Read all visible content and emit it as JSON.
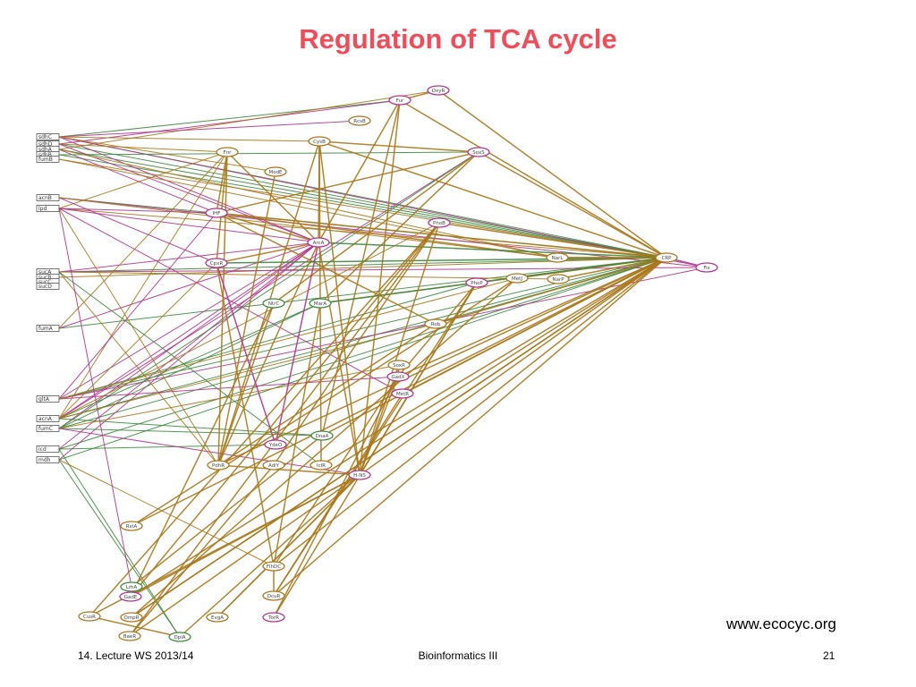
{
  "slide": {
    "title": "Regulation of TCA cycle",
    "credit": "www.ecocyc.org",
    "footer_left": "14. Lecture WS 2013/14",
    "footer_center": "Bioinformatics III",
    "footer_right": "21"
  },
  "colors": {
    "title": "#f04d5a",
    "edge_brown": "#a8781c",
    "edge_green": "#3f8a3f",
    "edge_magenta": "#b0358f"
  },
  "genes": [
    "sdhC",
    "sdhD",
    "sdhA",
    "sdhB",
    "fumB",
    "acnB",
    "lpd",
    "sucA",
    "sucB",
    "sucC",
    "sucD",
    "fumA",
    "gltA",
    "acnA",
    "fumC",
    "icd",
    "mdh"
  ],
  "regulators": [
    "Fur",
    "OxyR",
    "RcsB",
    "CysB",
    "Fnr",
    "SoxS",
    "ModE",
    "IHF",
    "ArcA",
    "CRP",
    "Fis",
    "CpxR",
    "MarA",
    "NarL",
    "NarP",
    "MetJ",
    "PhoP",
    "PhoB",
    "NtrC",
    "Rob",
    "SoxR",
    "GadX",
    "MetR",
    "YdeO",
    "DnaA",
    "LrhA",
    "GadE",
    "DcuR",
    "FlhDC",
    "TorR",
    "PdhR",
    "AdiY",
    "IclR",
    "H-NS",
    "DpiA",
    "CusR",
    "OmpR",
    "BaeR",
    "EvgA",
    "RstA"
  ]
}
